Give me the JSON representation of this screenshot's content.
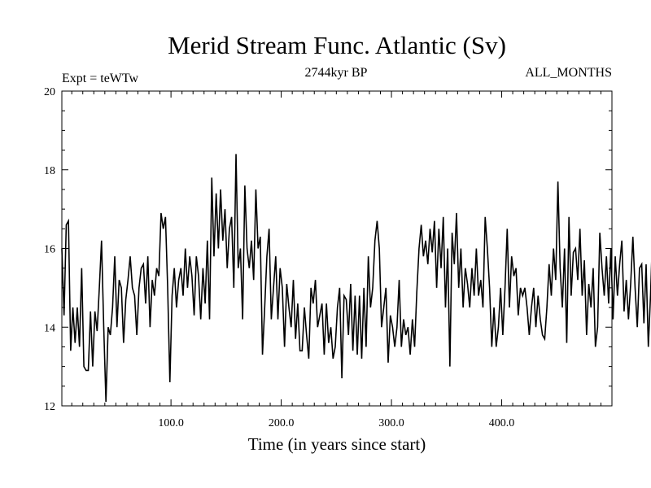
{
  "chart_data": {
    "type": "line",
    "title": "Merid Stream Func. Atlantic (Sv)",
    "left_label": "Expt = teWTw",
    "center_label": "2744kyr BP",
    "right_label": "ALL_MONTHS",
    "xlabel": "Time (in years since start)",
    "ylabel": "",
    "xlim": [
      1,
      500
    ],
    "ylim": [
      12,
      20
    ],
    "x_ticks": [
      100,
      200,
      300,
      400
    ],
    "x_tick_labels": [
      "100.0",
      "200.0",
      "300.0",
      "400.0"
    ],
    "y_ticks": [
      12,
      14,
      16,
      18,
      20
    ],
    "y_tick_labels": [
      "12",
      "14",
      "16",
      "18",
      "20"
    ],
    "grid": false,
    "series": [
      {
        "name": "Merid Stream Func. Atlantic",
        "color": "#000000",
        "x_start": 1,
        "x_step": 2,
        "values": [
          16.0,
          14.3,
          16.6,
          16.7,
          13.4,
          14.5,
          13.6,
          14.5,
          13.5,
          15.5,
          13.0,
          12.9,
          12.9,
          14.4,
          13.0,
          14.4,
          13.9,
          15.0,
          16.2,
          14.0,
          12.1,
          14.0,
          13.8,
          14.5,
          15.8,
          14.0,
          15.2,
          15.0,
          13.6,
          14.7,
          15.2,
          15.8,
          15.0,
          14.8,
          13.8,
          15.0,
          15.5,
          15.6,
          14.6,
          15.8,
          14.0,
          15.2,
          14.8,
          15.5,
          15.3,
          16.9,
          16.5,
          16.8,
          15.0,
          12.6,
          14.8,
          15.5,
          14.5,
          15.2,
          15.5,
          14.8,
          16.0,
          15.0,
          15.8,
          15.3,
          14.3,
          15.8,
          15.3,
          14.2,
          15.5,
          14.6,
          16.2,
          14.2,
          17.8,
          15.8,
          17.4,
          16.0,
          17.5,
          16.2,
          17.0,
          15.5,
          16.5,
          16.8,
          15.0,
          18.4,
          15.5,
          16.0,
          14.2,
          17.6,
          16.0,
          15.5,
          16.2,
          15.2,
          17.5,
          16.0,
          16.3,
          13.3,
          14.5,
          15.8,
          16.5,
          14.2,
          15.0,
          15.8,
          14.2,
          15.5,
          15.0,
          13.5,
          15.1,
          14.5,
          14.0,
          15.2,
          13.7,
          14.6,
          13.4,
          13.4,
          14.5,
          13.8,
          13.2,
          15.0,
          14.6,
          15.2,
          14.0,
          14.3,
          14.6,
          13.3,
          14.6,
          13.6,
          14.0,
          13.2,
          13.5,
          14.5,
          15.0,
          12.7,
          14.8,
          14.7,
          13.8,
          15.1,
          13.4,
          14.8,
          13.3,
          14.8,
          13.2,
          15.0,
          13.5,
          15.8,
          14.5,
          15.0,
          16.2,
          16.7,
          16.0,
          14.0,
          14.5,
          15.0,
          13.1,
          14.3,
          14.0,
          13.5,
          14.0,
          15.2,
          13.5,
          14.2,
          13.8,
          14.0,
          13.3,
          14.2,
          13.5,
          14.9,
          16.0,
          16.6,
          15.8,
          16.2,
          15.6,
          16.5,
          15.9,
          16.7,
          15.0,
          16.5,
          15.5,
          16.8,
          14.5,
          16.0,
          13.0,
          16.4,
          15.6,
          16.9,
          15.0,
          16.0,
          14.5,
          15.5,
          15.1,
          14.5,
          15.5,
          14.8,
          16.0,
          14.8,
          15.2,
          14.5,
          16.8,
          16.0,
          15.0,
          13.5,
          14.5,
          13.5,
          14.0,
          15.0,
          13.8,
          15.0,
          16.5,
          14.5,
          15.8,
          15.3,
          15.5,
          14.3,
          15.0,
          14.8,
          15.0,
          14.5,
          13.8,
          14.5,
          15.0,
          14.0,
          14.8,
          14.2,
          13.8,
          13.7,
          14.5,
          15.6,
          14.8,
          16.0,
          15.2,
          17.7,
          15.5,
          14.5,
          16.0,
          13.6,
          16.8,
          14.8,
          15.9,
          16.0,
          15.2,
          16.5,
          14.8,
          15.7,
          13.8,
          15.1,
          14.5,
          15.5,
          13.5,
          14.0,
          16.4,
          15.5,
          14.8,
          15.8,
          14.6,
          16.0,
          14.2,
          15.8,
          14.8,
          15.6,
          16.2,
          14.4,
          15.2,
          14.2,
          15.1,
          16.3,
          15.0,
          14.0,
          15.5,
          15.6,
          14.1,
          15.6,
          13.5,
          14.8,
          16.5,
          14.5,
          15.3,
          14.5,
          14.0,
          13.4,
          15.7,
          15.8,
          15.0,
          13.5,
          13.8,
          14.2,
          13.5,
          13.5,
          13.7,
          15.0,
          13.6,
          15.0,
          14.5,
          14.8,
          13.3,
          14.1,
          13.5,
          14.5,
          15.2,
          14.5,
          15.0,
          13.8,
          14.8,
          16.5,
          15.2,
          16.0,
          14.0,
          13.2,
          15.0,
          14.2,
          14.5,
          13.3,
          15.8,
          14.6,
          15.0,
          13.7,
          15.0,
          14.5,
          15.0,
          14.7,
          16.0,
          15.6,
          15.5,
          14.0,
          16.8,
          15.0,
          15.0,
          13.5,
          14.5,
          16.2,
          15.5,
          15.0,
          14.5,
          17.5,
          15.5,
          16.0,
          14.6,
          15.5,
          16.3,
          15.2,
          15.8,
          15.5,
          13.5,
          15.7,
          14.0,
          15.6,
          15.0,
          16.0,
          15.2,
          17.5,
          15.0,
          16.2,
          16.0,
          15.8,
          14.5,
          16.5,
          15.0,
          15.8,
          14.3,
          16.0,
          15.5,
          16.3,
          14.8,
          16.0,
          15.0,
          17.7,
          15.5,
          17.0,
          15.2,
          16.5,
          15.0,
          16.8,
          15.5,
          16.0,
          15.2,
          16.5,
          15.0,
          17.3,
          15.8,
          17.0,
          15.5,
          16.2,
          15.3,
          16.8,
          15.0,
          15.5,
          15.6,
          16.0,
          15.8,
          16.3,
          14.8,
          15.3,
          14.5,
          14.8,
          14.3,
          15.5,
          14.5,
          15.3,
          15.0,
          15.8,
          14.8,
          15.0,
          14.6,
          14.8,
          15.0,
          15.5,
          15.2,
          15.8,
          15.0,
          14.6,
          14.7,
          15.3,
          15.3,
          15.0,
          16.5,
          15.2,
          16.0,
          15.2,
          16.8,
          15.0,
          17.5,
          15.5,
          16.5,
          15.0,
          17.8,
          15.5,
          16.5,
          15.0,
          16.0,
          15.8,
          18.0,
          15.5,
          16.5,
          14.2,
          15.5,
          14.3,
          15.0,
          14.3,
          16.5,
          14.5,
          14.9,
          14.5,
          14.6,
          14.3,
          14.6,
          14.4,
          14.5,
          14.6,
          14.8,
          15.2,
          15.5,
          15.0,
          15.8,
          15.3,
          16.0,
          15.5,
          16.2,
          15.8,
          16.5,
          15.0,
          15.5,
          14.8,
          15.3,
          15.8,
          16.0,
          15.5,
          15.8,
          15.2,
          16.0,
          15.0,
          16.2,
          15.5,
          16.6,
          15.0,
          15.5,
          14.8,
          16.0,
          15.2,
          16.5,
          15.0,
          15.8,
          14.5,
          16.8,
          15.0,
          15.3,
          14.5,
          15.6,
          15.2,
          16.0,
          16.5,
          15.0,
          16.3,
          15.5
        ]
      }
    ]
  }
}
